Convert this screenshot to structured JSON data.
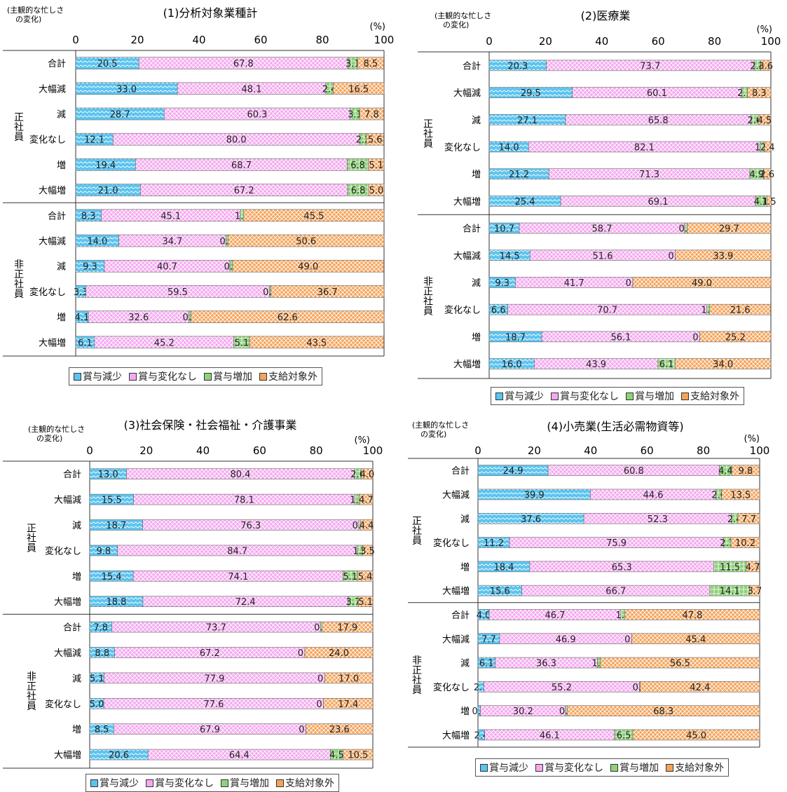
{
  "colors": {
    "reduce": "#5cc3ee",
    "nochange": "#f4a8f0",
    "increase": "#8fd27a",
    "notpay": "#f5a35a"
  },
  "legend": [
    "賞与減少",
    "賞与変化なし",
    "賞与増加",
    "支給対象外"
  ],
  "common": {
    "axis_note": "(%)",
    "ticks": [
      "0",
      "20",
      "40",
      "60",
      "80",
      "100"
    ]
  },
  "chart_data": [
    {
      "type": "bar",
      "stacked": "horizontal",
      "title": "(1)分析対象業種計",
      "ylabel": "(主観的な忙しさの変化)",
      "xlim": [
        0,
        100
      ],
      "groups": [
        {
          "name": "正社員",
          "rows": [
            {
              "label": "合計",
              "values": [
                20.5,
                67.8,
                3.1,
                8.5
              ]
            },
            {
              "label": "大幅減",
              "values": [
                33.0,
                48.1,
                2.4,
                16.5
              ]
            },
            {
              "label": "減",
              "values": [
                28.7,
                60.3,
                3.1,
                7.8
              ]
            },
            {
              "label": "変化なし",
              "values": [
                12.1,
                80.0,
                2.2,
                5.6
              ]
            },
            {
              "label": "増",
              "values": [
                19.4,
                68.7,
                6.8,
                5.1
              ]
            },
            {
              "label": "大幅増",
              "values": [
                21.0,
                67.2,
                6.8,
                5.0
              ]
            }
          ]
        },
        {
          "name": "非正社員",
          "rows": [
            {
              "label": "合計",
              "values": [
                8.3,
                45.1,
                1.1,
                45.5
              ]
            },
            {
              "label": "大幅減",
              "values": [
                14.0,
                34.7,
                0.7,
                50.6
              ]
            },
            {
              "label": "減",
              "values": [
                9.3,
                40.7,
                0.9,
                49.0
              ]
            },
            {
              "label": "変化なし",
              "values": [
                3.3,
                59.5,
                0.5,
                36.7
              ]
            },
            {
              "label": "増",
              "values": [
                4.1,
                32.6,
                0.7,
                62.6
              ]
            },
            {
              "label": "大幅増",
              "values": [
                6.1,
                45.2,
                5.1,
                43.5
              ]
            }
          ]
        }
      ]
    },
    {
      "type": "bar",
      "stacked": "horizontal",
      "title": "(2)医療業",
      "ylabel": "(主観的な忙しさの変化)",
      "xlim": [
        0,
        100
      ],
      "groups": [
        {
          "name": "正社員",
          "rows": [
            {
              "label": "合計",
              "values": [
                20.3,
                73.7,
                2.4,
                3.6
              ]
            },
            {
              "label": "大幅減",
              "values": [
                29.5,
                60.1,
                2.1,
                8.3
              ]
            },
            {
              "label": "減",
              "values": [
                27.1,
                65.8,
                2.6,
                4.5
              ]
            },
            {
              "label": "変化なし",
              "values": [
                14.0,
                82.1,
                1.5,
                2.4
              ]
            },
            {
              "label": "増",
              "values": [
                21.2,
                71.3,
                4.9,
                2.6
              ]
            },
            {
              "label": "大幅増",
              "values": [
                25.4,
                69.1,
                4.1,
                1.5
              ]
            }
          ]
        },
        {
          "name": "非正社員",
          "rows": [
            {
              "label": "合計",
              "values": [
                10.7,
                58.7,
                0.9,
                29.7
              ]
            },
            {
              "label": "大幅減",
              "values": [
                14.5,
                51.6,
                0.0,
                33.9
              ]
            },
            {
              "label": "減",
              "values": [
                9.3,
                41.7,
                0.0,
                49.0
              ]
            },
            {
              "label": "変化なし",
              "values": [
                6.6,
                70.7,
                1.0,
                21.6
              ]
            },
            {
              "label": "増",
              "values": [
                18.7,
                56.1,
                0.0,
                25.2
              ]
            },
            {
              "label": "大幅増",
              "values": [
                16.0,
                43.9,
                6.1,
                34.0
              ]
            }
          ]
        }
      ]
    },
    {
      "type": "bar",
      "stacked": "horizontal",
      "title": "(3)社会保険・社会福祉・介護事業",
      "ylabel": "(主観的な忙しさの変化)",
      "xlim": [
        0,
        100
      ],
      "groups": [
        {
          "name": "正社員",
          "rows": [
            {
              "label": "合計",
              "values": [
                13.0,
                80.4,
                2.6,
                4.0
              ]
            },
            {
              "label": "大幅減",
              "values": [
                15.5,
                78.1,
                1.7,
                4.7
              ]
            },
            {
              "label": "減",
              "values": [
                18.7,
                76.3,
                0.6,
                4.4
              ]
            },
            {
              "label": "変化なし",
              "values": [
                9.8,
                84.7,
                1.9,
                3.5
              ]
            },
            {
              "label": "増",
              "values": [
                15.4,
                74.1,
                5.1,
                5.4
              ]
            },
            {
              "label": "大幅増",
              "values": [
                18.8,
                72.4,
                3.7,
                5.1
              ]
            }
          ]
        },
        {
          "name": "非正社員",
          "rows": [
            {
              "label": "合計",
              "values": [
                7.8,
                73.7,
                0.6,
                17.9
              ]
            },
            {
              "label": "大幅減",
              "values": [
                8.8,
                67.2,
                0.0,
                24.0
              ]
            },
            {
              "label": "減",
              "values": [
                5.1,
                77.9,
                0.0,
                17.0
              ]
            },
            {
              "label": "変化なし",
              "values": [
                5.0,
                77.6,
                0.0,
                17.4
              ]
            },
            {
              "label": "増",
              "values": [
                8.5,
                67.9,
                0.0,
                23.6
              ]
            },
            {
              "label": "大幅増",
              "values": [
                20.6,
                64.4,
                4.5,
                10.5
              ]
            }
          ]
        }
      ]
    },
    {
      "type": "bar",
      "stacked": "horizontal",
      "title": "(4)小売業(生活必需物資等)",
      "ylabel": "(主観的な忙しさの変化)",
      "xlim": [
        0,
        100
      ],
      "groups": [
        {
          "name": "正社員",
          "rows": [
            {
              "label": "合計",
              "values": [
                24.9,
                60.8,
                4.4,
                9.8
              ]
            },
            {
              "label": "大幅減",
              "values": [
                39.9,
                44.6,
                2.0,
                13.5
              ]
            },
            {
              "label": "減",
              "values": [
                37.6,
                52.3,
                2.4,
                7.7
              ]
            },
            {
              "label": "変化なし",
              "values": [
                11.2,
                75.9,
                2.7,
                10.2
              ]
            },
            {
              "label": "増",
              "values": [
                18.4,
                65.3,
                11.5,
                4.7
              ]
            },
            {
              "label": "大幅増",
              "values": [
                15.6,
                66.7,
                14.1,
                3.7
              ]
            }
          ]
        },
        {
          "name": "非正社員",
          "rows": [
            {
              "label": "合計",
              "values": [
                4.0,
                46.7,
                1.5,
                47.8
              ]
            },
            {
              "label": "大幅減",
              "values": [
                7.7,
                46.9,
                0.0,
                45.4
              ]
            },
            {
              "label": "減",
              "values": [
                6.1,
                36.3,
                1.1,
                56.5
              ]
            },
            {
              "label": "変化なし",
              "values": [
                2.1,
                55.2,
                0.3,
                42.4
              ]
            },
            {
              "label": "増",
              "values": [
                0.9,
                30.2,
                0.6,
                68.3
              ]
            },
            {
              "label": "大幅増",
              "values": [
                2.4,
                46.1,
                6.5,
                45.0
              ]
            }
          ]
        }
      ]
    }
  ]
}
